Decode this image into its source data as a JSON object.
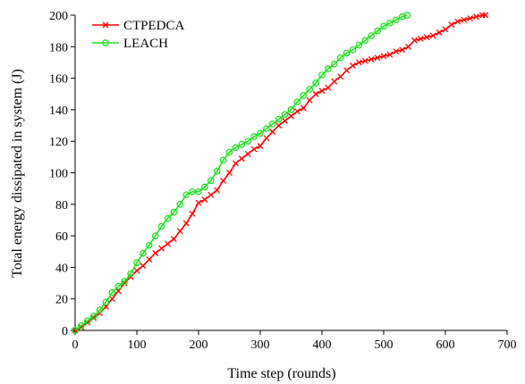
{
  "chart_data": {
    "type": "line",
    "title": "",
    "xlabel": "Time  step (rounds)",
    "ylabel": "Total energy dissipated in system (J)",
    "xlim": [
      0,
      700
    ],
    "ylim": [
      0,
      200
    ],
    "x_ticks": [
      0,
      100,
      200,
      300,
      400,
      500,
      600,
      700
    ],
    "y_ticks": [
      0,
      20,
      40,
      60,
      80,
      100,
      120,
      140,
      160,
      180,
      200
    ],
    "grid": false,
    "legend_position": "top-left",
    "series": [
      {
        "name": "CTPEDCA",
        "color": "#ff0000",
        "marker": "x",
        "x": [
          0,
          10,
          20,
          30,
          40,
          50,
          60,
          70,
          80,
          90,
          100,
          110,
          120,
          130,
          140,
          150,
          160,
          170,
          180,
          190,
          200,
          210,
          220,
          230,
          240,
          250,
          260,
          270,
          280,
          290,
          300,
          310,
          320,
          330,
          340,
          350,
          360,
          370,
          380,
          390,
          400,
          410,
          420,
          430,
          440,
          450,
          460,
          470,
          480,
          490,
          500,
          510,
          520,
          530,
          540,
          550,
          560,
          570,
          580,
          590,
          600,
          610,
          620,
          630,
          640,
          650,
          660,
          665
        ],
        "values": [
          0,
          2,
          5,
          8,
          11,
          15,
          20,
          25,
          30,
          34,
          38,
          41,
          45,
          49,
          52,
          55,
          58,
          63,
          68,
          74,
          81,
          83,
          86,
          89,
          95,
          100,
          106,
          109,
          112,
          115,
          117,
          122,
          126,
          130,
          133,
          136,
          139,
          141,
          146,
          150,
          152,
          154,
          158,
          161,
          165,
          168,
          170,
          171,
          172,
          173,
          174,
          175,
          177,
          178,
          180,
          184,
          185,
          186,
          187,
          189,
          191,
          194,
          196,
          197,
          198,
          199,
          200,
          200
        ]
      },
      {
        "name": "LEACH",
        "color": "#22e022",
        "marker": "o",
        "x": [
          0,
          10,
          20,
          30,
          40,
          50,
          60,
          70,
          80,
          90,
          100,
          110,
          120,
          130,
          140,
          150,
          160,
          170,
          180,
          190,
          200,
          210,
          220,
          230,
          240,
          250,
          260,
          270,
          280,
          290,
          300,
          310,
          320,
          330,
          340,
          350,
          360,
          370,
          380,
          390,
          400,
          410,
          420,
          430,
          440,
          450,
          460,
          470,
          480,
          490,
          500,
          510,
          520,
          530,
          538
        ],
        "values": [
          0,
          3,
          6,
          9,
          13,
          18,
          24,
          28,
          31,
          36,
          43,
          49,
          54,
          60,
          66,
          71,
          75,
          80,
          86,
          88,
          88,
          91,
          95,
          101,
          108,
          113,
          116,
          118,
          120,
          123,
          125,
          128,
          131,
          134,
          137,
          140,
          145,
          149,
          153,
          157,
          162,
          166,
          169,
          173,
          176,
          178,
          181,
          184,
          187,
          190,
          193,
          195,
          197,
          199,
          200
        ]
      }
    ]
  }
}
